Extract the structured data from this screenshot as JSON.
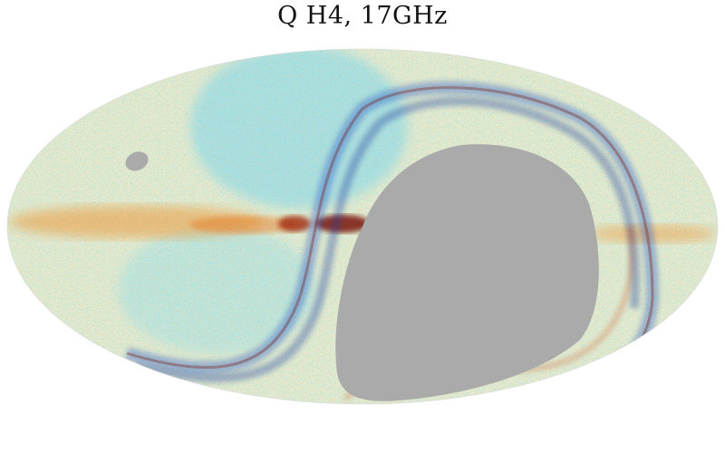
{
  "title": "Q H4, 17GHz",
  "map": {
    "projection": "mollweide",
    "colormap": [
      "#1a3da0",
      "#1b7fe0",
      "#21c8ee",
      "#a8e6d2",
      "#f2efc2",
      "#f5c46a",
      "#f08a1e",
      "#c8400a",
      "#7a1808"
    ],
    "masked_color": "#aaaaaa",
    "background": "#ffffff"
  }
}
